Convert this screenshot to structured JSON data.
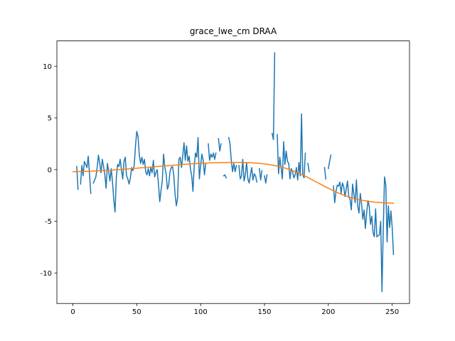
{
  "chart_data": {
    "type": "line",
    "title": "grace_lwe_cm DRAA",
    "x": [
      0,
      1,
      2,
      3,
      4,
      5,
      6,
      7,
      8,
      9,
      10,
      11,
      12,
      13,
      14,
      15,
      16,
      17,
      18,
      19,
      20,
      21,
      22,
      23,
      24,
      25,
      26,
      27,
      28,
      29,
      30,
      31,
      32,
      33,
      34,
      35,
      36,
      37,
      38,
      39,
      40,
      41,
      42,
      43,
      44,
      45,
      46,
      47,
      48,
      49,
      50,
      51,
      52,
      53,
      54,
      55,
      56,
      57,
      58,
      59,
      60,
      61,
      62,
      63,
      64,
      65,
      66,
      67,
      68,
      69,
      70,
      71,
      72,
      73,
      74,
      75,
      76,
      77,
      78,
      79,
      80,
      81,
      82,
      83,
      84,
      85,
      86,
      87,
      88,
      89,
      90,
      91,
      92,
      93,
      94,
      95,
      96,
      97,
      98,
      99,
      100,
      101,
      102,
      103,
      104,
      105,
      106,
      107,
      108,
      109,
      110,
      111,
      112,
      113,
      114,
      115,
      116,
      117,
      118,
      119,
      120,
      121,
      122,
      123,
      124,
      125,
      126,
      127,
      128,
      129,
      130,
      131,
      132,
      133,
      134,
      135,
      136,
      137,
      138,
      139,
      140,
      141,
      142,
      143,
      144,
      145,
      146,
      147,
      148,
      149,
      150,
      151,
      152,
      153,
      154,
      155,
      156,
      157,
      158,
      159,
      160,
      161,
      162,
      163,
      164,
      165,
      166,
      167,
      168,
      169,
      170,
      171,
      172,
      173,
      174,
      175,
      176,
      177,
      178,
      179,
      180,
      181,
      182,
      183,
      184,
      185,
      186,
      187,
      188,
      189,
      190,
      191,
      192,
      193,
      194,
      195,
      196,
      197,
      198,
      199,
      200,
      201,
      202,
      203,
      204,
      205,
      206,
      207,
      208,
      209,
      210,
      211,
      212,
      213,
      214,
      215,
      216,
      217,
      218,
      219,
      220,
      221,
      222,
      223,
      224,
      225,
      226,
      227,
      228,
      229,
      230,
      231,
      232,
      233,
      234,
      235,
      236,
      237,
      238,
      239,
      240,
      241,
      242,
      243,
      244,
      245,
      246,
      247,
      248,
      249,
      250,
      251
    ],
    "series": [
      {
        "color": "#1f77b4",
        "values": [
          null,
          null,
          null,
          0.3,
          -1.9,
          null,
          -1.4,
          0.4,
          -0.6,
          0.8,
          0.5,
          0.2,
          1.3,
          -0.4,
          -2.3,
          null,
          -1.3,
          -1.0,
          -0.7,
          0.2,
          1.4,
          0.6,
          -0.3,
          1.0,
          0.3,
          -0.5,
          -1.8,
          0.6,
          -0.2,
          -1.1,
          0.1,
          -1.2,
          -2.9,
          -4.1,
          -0.8,
          0.5,
          0.3,
          1.0,
          0.0,
          -0.9,
          0.8,
          1.2,
          -0.6,
          -0.9,
          -1.4,
          -0.8,
          0.2,
          -0.1,
          0.4,
          2.3,
          3.7,
          3.2,
          1.4,
          0.6,
          1.2,
          0.5,
          1.0,
          -0.2,
          -0.5,
          0.1,
          -0.6,
          0.2,
          -0.3,
          0.9,
          -0.7,
          -0.3,
          0.0,
          -1.4,
          -3.1,
          -2.0,
          -1.1,
          1.5,
          0.2,
          -0.4,
          -1.9,
          -1.5,
          -0.2,
          0.2,
          0.3,
          -0.6,
          -2.4,
          -3.5,
          -2.7,
          1.0,
          1.2,
          0.2,
          1.3,
          2.6,
          0.9,
          2.3,
          0.8,
          1.3,
          0.1,
          -0.6,
          -2.1,
          0.4,
          1.6,
          1.2,
          3.1,
          -0.9,
          0.4,
          1.5,
          0.9,
          -0.5,
          0.6,
          null,
          2.5,
          0.9,
          1.5,
          1.2,
          1.6,
          1.0,
          1.6,
          null,
          3.0,
          1.8,
          2.5,
          null,
          -0.6,
          -0.5,
          -0.8,
          null,
          3.1,
          2.5,
          0.9,
          -0.2,
          0.6,
          -0.2,
          0.4,
          null,
          0.4,
          -0.9,
          -0.6,
          1.0,
          -1.1,
          -0.5,
          0.7,
          -0.9,
          -1.3,
          -0.5,
          0.2,
          -1.0,
          -0.4,
          -0.6,
          -1.2,
          null,
          0.1,
          -1.0,
          -0.1,
          null,
          -0.6,
          -1.3,
          -0.5,
          null,
          null,
          null,
          3.5,
          2.9,
          11.3,
          null,
          3.4,
          -0.4,
          1.2,
          0.2,
          -0.9,
          2.7,
          0.5,
          1.8,
          0.8,
          0.6,
          -0.9,
          0.1,
          -0.2,
          -0.8,
          -0.5,
          0.2,
          -1.0,
          0.7,
          -0.6,
          5.4,
          -0.5,
          -0.8,
          1.6,
          null,
          0.6,
          -0.2,
          null,
          null,
          null,
          null,
          null,
          null,
          null,
          null,
          null,
          null,
          null,
          0.2,
          -0.9,
          null,
          0.1,
          0.8,
          1.4,
          null,
          -1.6,
          -3.2,
          -2.1,
          -1.5,
          -1.6,
          -1.2,
          -2.3,
          -1.3,
          -1.6,
          -2.6,
          -1.9,
          -1.1,
          -2.6,
          -2.9,
          -3.9,
          -1.4,
          -2.4,
          -3.2,
          -1.0,
          -3.5,
          -4.2,
          -2.3,
          -3.3,
          -4.8,
          -3.9,
          -5.7,
          -4.2,
          -3.0,
          -3.5,
          -5.3,
          -4.5,
          -6.1,
          -6.5,
          -3.8,
          -6.5,
          -6.4,
          -6.3,
          -5.0,
          -11.8,
          -5.8,
          -0.7,
          -1.5,
          -7.0,
          -3.5,
          -5.6,
          -4.0,
          -5.6,
          -8.2
        ]
      },
      {
        "color": "#ff7f0e",
        "values": [
          -0.2,
          -0.2,
          -0.2,
          -0.19,
          -0.19,
          -0.19,
          -0.18,
          -0.18,
          -0.18,
          -0.17,
          -0.17,
          -0.16,
          -0.16,
          -0.15,
          -0.15,
          -0.14,
          -0.14,
          -0.13,
          -0.13,
          -0.12,
          -0.12,
          -0.11,
          -0.1,
          -0.1,
          -0.09,
          -0.08,
          -0.08,
          -0.07,
          -0.06,
          -0.05,
          -0.05,
          -0.04,
          -0.03,
          -0.02,
          -0.01,
          0.0,
          0.0,
          0.01,
          0.02,
          0.03,
          0.04,
          0.05,
          0.06,
          0.07,
          0.08,
          0.09,
          0.1,
          0.11,
          0.12,
          0.13,
          0.14,
          0.15,
          0.16,
          0.17,
          0.18,
          0.19,
          0.2,
          0.21,
          0.22,
          0.23,
          0.24,
          0.25,
          0.26,
          0.27,
          0.28,
          0.29,
          0.3,
          0.31,
          0.32,
          0.33,
          0.34,
          0.35,
          0.36,
          0.37,
          0.38,
          0.39,
          0.4,
          0.41,
          0.42,
          0.43,
          0.44,
          0.45,
          0.46,
          0.47,
          0.48,
          0.49,
          0.5,
          0.51,
          0.52,
          0.53,
          0.53,
          0.54,
          0.55,
          0.56,
          0.57,
          0.57,
          0.58,
          0.59,
          0.6,
          0.6,
          0.61,
          0.62,
          0.62,
          0.63,
          0.63,
          0.64,
          0.64,
          0.65,
          0.65,
          0.66,
          0.66,
          0.67,
          0.67,
          0.67,
          0.68,
          0.68,
          0.68,
          0.69,
          0.69,
          0.69,
          0.69,
          0.7,
          0.7,
          0.7,
          0.7,
          0.7,
          0.7,
          0.7,
          0.7,
          0.7,
          0.7,
          0.7,
          0.7,
          0.69,
          0.69,
          0.69,
          0.68,
          0.68,
          0.67,
          0.67,
          0.66,
          0.65,
          0.64,
          0.64,
          0.63,
          0.62,
          0.61,
          0.59,
          0.58,
          0.57,
          0.55,
          0.54,
          0.52,
          0.5,
          0.48,
          0.46,
          0.44,
          0.42,
          0.39,
          0.37,
          0.34,
          0.31,
          0.28,
          0.25,
          0.22,
          0.18,
          0.15,
          0.11,
          0.07,
          0.03,
          -0.01,
          -0.06,
          -0.1,
          -0.15,
          -0.2,
          -0.25,
          -0.3,
          -0.36,
          -0.41,
          -0.47,
          -0.53,
          -0.58,
          -0.64,
          -0.7,
          -0.77,
          -0.83,
          -0.89,
          -0.96,
          -1.02,
          -1.09,
          -1.15,
          -1.22,
          -1.28,
          -1.35,
          -1.41,
          -1.48,
          -1.54,
          -1.61,
          -1.67,
          -1.74,
          -1.8,
          -1.86,
          -1.92,
          -1.98,
          -2.04,
          -2.1,
          -2.16,
          -2.21,
          -2.27,
          -2.32,
          -2.37,
          -2.42,
          -2.47,
          -2.51,
          -2.56,
          -2.6,
          -2.64,
          -2.68,
          -2.72,
          -2.76,
          -2.79,
          -2.82,
          -2.85,
          -2.88,
          -2.91,
          -2.93,
          -2.96,
          -2.98,
          -3.0,
          -3.02,
          -3.04,
          -3.06,
          -3.08,
          -3.09,
          -3.11,
          -3.12,
          -3.14,
          -3.15,
          -3.16,
          -3.17,
          -3.18,
          -3.19,
          -3.2,
          -3.21,
          -3.22,
          -3.22,
          -3.23,
          -3.23,
          -3.24,
          -3.24,
          -3.24,
          -3.25
        ]
      }
    ],
    "xlim": [
      -12.55,
      263.55
    ],
    "ylim": [
      -12.95,
      12.45
    ],
    "xticks": [
      0,
      50,
      100,
      150,
      200,
      250
    ],
    "yticks": [
      -10,
      -5,
      0,
      5,
      10
    ]
  }
}
